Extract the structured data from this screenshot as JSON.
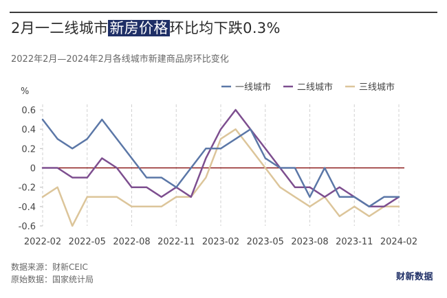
{
  "header": {
    "title_before": "2月一二线城市",
    "title_highlight": "新房价格",
    "title_after": "环比均下跌0.3%",
    "subtitle": "2022年2月—2024年2月各线城市新建商品房环比变化"
  },
  "footer": {
    "source": "数据来源：财新CEIC",
    "raw_source": "原始数据：国家统计局",
    "brand": "财新数据"
  },
  "colors": {
    "tier1": "#5b77a7",
    "tier2": "#7d4e8f",
    "tier3": "#dcc59a",
    "zero_line": "#8b1a1a",
    "highlight": "#1f2f66"
  },
  "chart_data": {
    "type": "line",
    "ylabel": "%",
    "ylim": [
      -0.6,
      0.6
    ],
    "yticks": [
      0.6,
      0.4,
      0.2,
      0,
      -0.2,
      -0.4,
      -0.6
    ],
    "x": [
      "2022-02",
      "2022-03",
      "2022-04",
      "2022-05",
      "2022-06",
      "2022-07",
      "2022-08",
      "2022-09",
      "2022-10",
      "2022-11",
      "2022-12",
      "2023-01",
      "2023-02",
      "2023-03",
      "2023-04",
      "2023-05",
      "2023-06",
      "2023-07",
      "2023-08",
      "2023-09",
      "2023-10",
      "2023-11",
      "2023-12",
      "2024-01",
      "2024-02"
    ],
    "xtick_labels": [
      "2022-02",
      "2022-05",
      "2022-08",
      "2022-11",
      "2023-02",
      "2023-05",
      "2023-08",
      "2023-11",
      "2024-02"
    ],
    "legend_position": "top-right",
    "series": [
      {
        "name": "一线城市",
        "color": "#5b77a7",
        "values": [
          0.5,
          0.3,
          0.2,
          0.3,
          0.5,
          0.3,
          0.1,
          -0.1,
          -0.1,
          -0.2,
          0.0,
          0.2,
          0.2,
          0.3,
          0.4,
          0.1,
          0.0,
          0.0,
          -0.3,
          0.0,
          -0.3,
          -0.3,
          -0.4,
          -0.3,
          -0.3
        ]
      },
      {
        "name": "二线城市",
        "color": "#7d4e8f",
        "values": [
          0.0,
          0.0,
          -0.1,
          -0.1,
          0.1,
          0.0,
          -0.2,
          -0.2,
          -0.3,
          -0.2,
          -0.3,
          0.1,
          0.4,
          0.6,
          0.4,
          0.2,
          0.0,
          -0.2,
          -0.2,
          -0.3,
          -0.2,
          -0.3,
          -0.4,
          -0.4,
          -0.3
        ]
      },
      {
        "name": "三线城市",
        "color": "#dcc59a",
        "values": [
          -0.3,
          -0.2,
          -0.6,
          -0.3,
          -0.3,
          -0.3,
          -0.4,
          -0.4,
          -0.4,
          -0.3,
          -0.3,
          -0.1,
          0.3,
          0.4,
          0.2,
          0.0,
          -0.2,
          -0.3,
          -0.4,
          -0.3,
          -0.5,
          -0.4,
          -0.5,
          -0.4,
          -0.4
        ]
      }
    ]
  }
}
